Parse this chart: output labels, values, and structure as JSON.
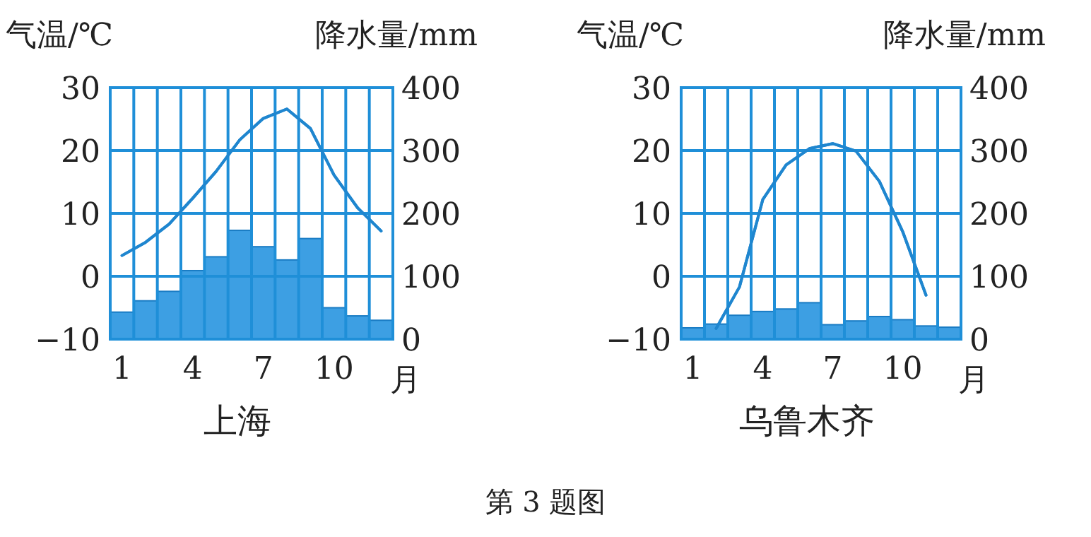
{
  "chart_data": [
    {
      "type": "bar",
      "title": "上海",
      "xlabel": "月",
      "ylabel": "气温/℃",
      "y2label": "降水量/mm",
      "categories": [
        "1",
        null,
        null,
        "4",
        null,
        null,
        "7",
        null,
        null,
        "10",
        null,
        null
      ],
      "grid": true,
      "ylim": [
        -10,
        30
      ],
      "yticks": [
        -10,
        0,
        10,
        20,
        30
      ],
      "y2lim": [
        0,
        400
      ],
      "y2ticks": [
        0,
        100,
        200,
        300,
        400
      ],
      "series": [
        {
          "axis": "y2",
          "color": "#3d9fe3",
          "values": [
            43,
            61,
            76,
            109,
            131,
            173,
            147,
            126,
            160,
            50,
            37,
            30
          ]
        },
        {
          "type": "line",
          "axis": "y",
          "color": "#1f86cf",
          "values": [
            3.3,
            5.4,
            8.3,
            12.4,
            16.7,
            21.7,
            25.1,
            26.6,
            23.5,
            16.1,
            10.9,
            7.2
          ]
        }
      ]
    },
    {
      "type": "bar",
      "title": "乌鲁木齐",
      "xlabel": "月",
      "ylabel": "气温/℃",
      "y2label": "降水量/mm",
      "categories": [
        "1",
        null,
        null,
        "4",
        null,
        null,
        "7",
        null,
        null,
        "10",
        null,
        null
      ],
      "grid": true,
      "ylim": [
        -10,
        30
      ],
      "yticks": [
        -10,
        0,
        10,
        20,
        30
      ],
      "y2lim": [
        0,
        400
      ],
      "y2ticks": [
        0,
        100,
        200,
        300,
        400
      ],
      "annotations": [
        "第 3 题图"
      ],
      "series": [
        {
          "axis": "y2",
          "color": "#3d9fe3",
          "values": [
            18,
            24,
            38,
            44,
            48,
            58,
            23,
            29,
            36,
            31,
            21,
            19
          ]
        },
        {
          "type": "line",
          "axis": "y",
          "color": "#1f86cf",
          "values": [
            null,
            -8.3,
            -1.7,
            12.2,
            17.7,
            20.3,
            21.1,
            19.9,
            15.1,
            7.1,
            -3,
            null
          ]
        }
      ]
    }
  ]
}
